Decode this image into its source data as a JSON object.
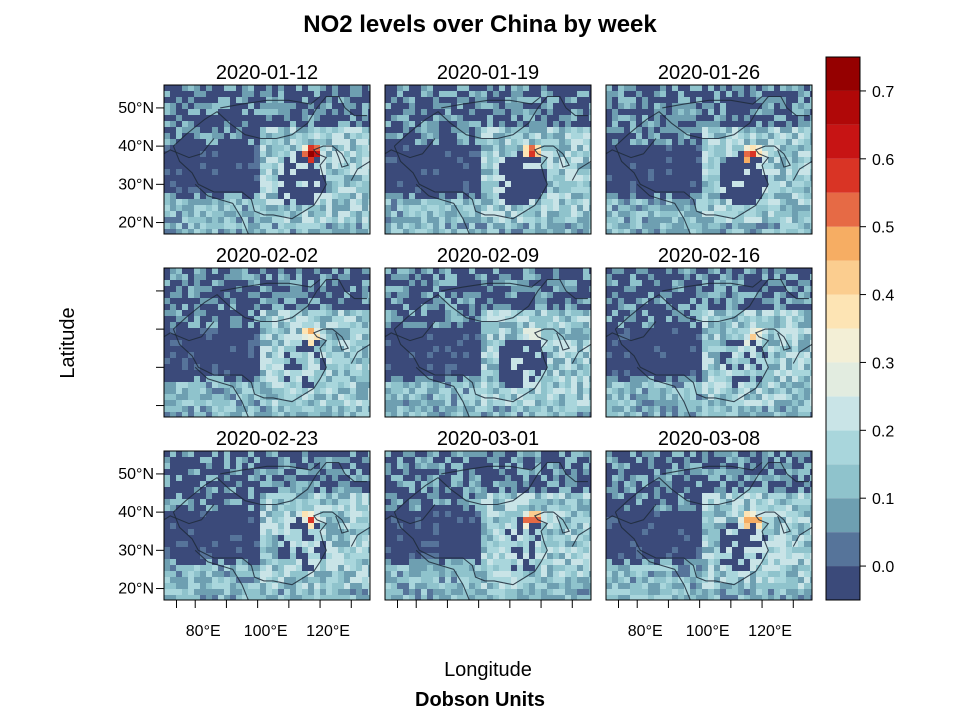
{
  "chart_data": {
    "type": "heatmap",
    "title": "NO2 levels over China by week",
    "xlabel": "Longitude",
    "ylabel": "Latitude",
    "legend_title": "Dobson Units",
    "legend_position": "right",
    "grid": false,
    "layout": {
      "rows": 3,
      "cols": 3
    },
    "x_ticks": [
      "80°E",
      "100°E",
      "120°E"
    ],
    "y_ticks": [
      "50°N",
      "40°N",
      "30°N",
      "20°N"
    ],
    "color_scale": {
      "range": [
        -0.05,
        0.75
      ],
      "breaks": [
        -0.05,
        0.0,
        0.05,
        0.1,
        0.15,
        0.2,
        0.25,
        0.3,
        0.35,
        0.4,
        0.45,
        0.5,
        0.55,
        0.6,
        0.65,
        0.7,
        0.75
      ],
      "colors": [
        "#3b4a7a",
        "#56749a",
        "#6e9fb1",
        "#8fc3cc",
        "#a9d6dc",
        "#c9e4e7",
        "#e2ece0",
        "#f3efd6",
        "#fde4b4",
        "#fbcd8f",
        "#f6ad63",
        "#e66a45",
        "#d93425",
        "#c71414",
        "#b00808",
        "#950000"
      ],
      "tick_values": [
        0.0,
        0.1,
        0.2,
        0.3,
        0.4,
        0.5,
        0.6,
        0.7
      ],
      "tick_labels": [
        "0.0",
        "0.1",
        "0.2",
        "0.3",
        "0.4",
        "0.5",
        "0.6",
        "0.7"
      ]
    },
    "panels": [
      {
        "title": "2020-01-12",
        "show_x_labels": false,
        "show_y_labels": true,
        "hotspot_level": 0.7,
        "missing_level": 0.7
      },
      {
        "title": "2020-01-19",
        "show_x_labels": false,
        "show_y_labels": false,
        "hotspot_level": 0.68,
        "missing_level": 0.8
      },
      {
        "title": "2020-01-26",
        "show_x_labels": false,
        "show_y_labels": false,
        "hotspot_level": 0.62,
        "missing_level": 0.85
      },
      {
        "title": "2020-02-02",
        "show_x_labels": false,
        "show_y_labels": false,
        "hotspot_level": 0.52,
        "missing_level": 0.35
      },
      {
        "title": "2020-02-09",
        "show_x_labels": false,
        "show_y_labels": false,
        "hotspot_level": 0.4,
        "missing_level": 0.6
      },
      {
        "title": "2020-02-16",
        "show_x_labels": false,
        "show_y_labels": false,
        "hotspot_level": 0.42,
        "missing_level": 0.25
      },
      {
        "title": "2020-02-23",
        "show_x_labels": true,
        "show_y_labels": true,
        "hotspot_level": 0.52,
        "missing_level": 0.4
      },
      {
        "title": "2020-03-01",
        "show_x_labels": false,
        "show_y_labels": false,
        "hotspot_level": 0.6,
        "missing_level": 0.3
      },
      {
        "title": "2020-03-08",
        "show_x_labels": true,
        "show_y_labels": false,
        "hotspot_level": 0.58,
        "missing_level": 0.55
      }
    ]
  }
}
